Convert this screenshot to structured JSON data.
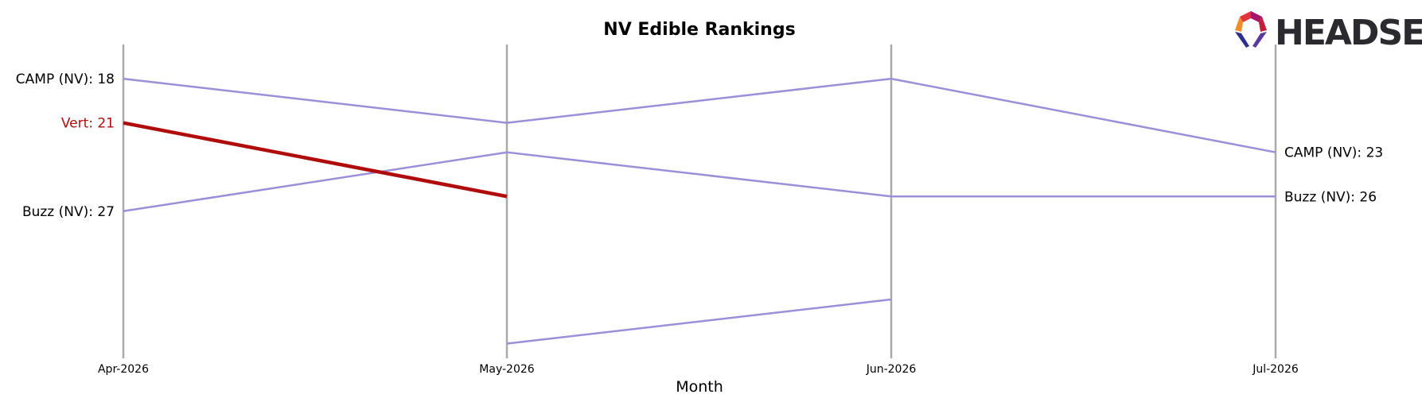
{
  "chart_data": {
    "type": "line",
    "title": "NV Edible Rankings",
    "xlabel": "Month",
    "ylabel": "",
    "x": [
      "Apr-2026",
      "May-2026",
      "Jun-2026",
      "Jul-2026"
    ],
    "ylim": [
      14,
      37
    ],
    "y_inverted": true,
    "y_ticks_shown": false,
    "grid": false,
    "series": [
      {
        "name": "CAMP (NV)",
        "values": [
          18,
          21,
          18,
          23
        ],
        "color": "#9b8fd9",
        "highlight": false,
        "start_label": "CAMP (NV): 18",
        "end_label": "CAMP (NV): 23"
      },
      {
        "name": "Buzz (NV)",
        "values": [
          27,
          23,
          26,
          26
        ],
        "color": "#9b8fd9",
        "highlight": false,
        "start_label": "Buzz (NV): 27",
        "end_label": "Buzz (NV): 26"
      },
      {
        "name": "Vert",
        "values": [
          21,
          26,
          null,
          null
        ],
        "color": "#b10c0c",
        "highlight": true,
        "start_label": "Vert: 21",
        "end_label": ""
      },
      {
        "name": "",
        "values": [
          null,
          36,
          33,
          null
        ],
        "color": "#9b8fd9",
        "highlight": false,
        "start_label": "",
        "end_label": ""
      }
    ]
  },
  "branding": {
    "logo_text": "HEADSET",
    "logo_colors": [
      "#e0343a",
      "#a6176a",
      "#f28c28",
      "#2d2f8f",
      "#c41e3a",
      "#5b3aa0"
    ]
  }
}
